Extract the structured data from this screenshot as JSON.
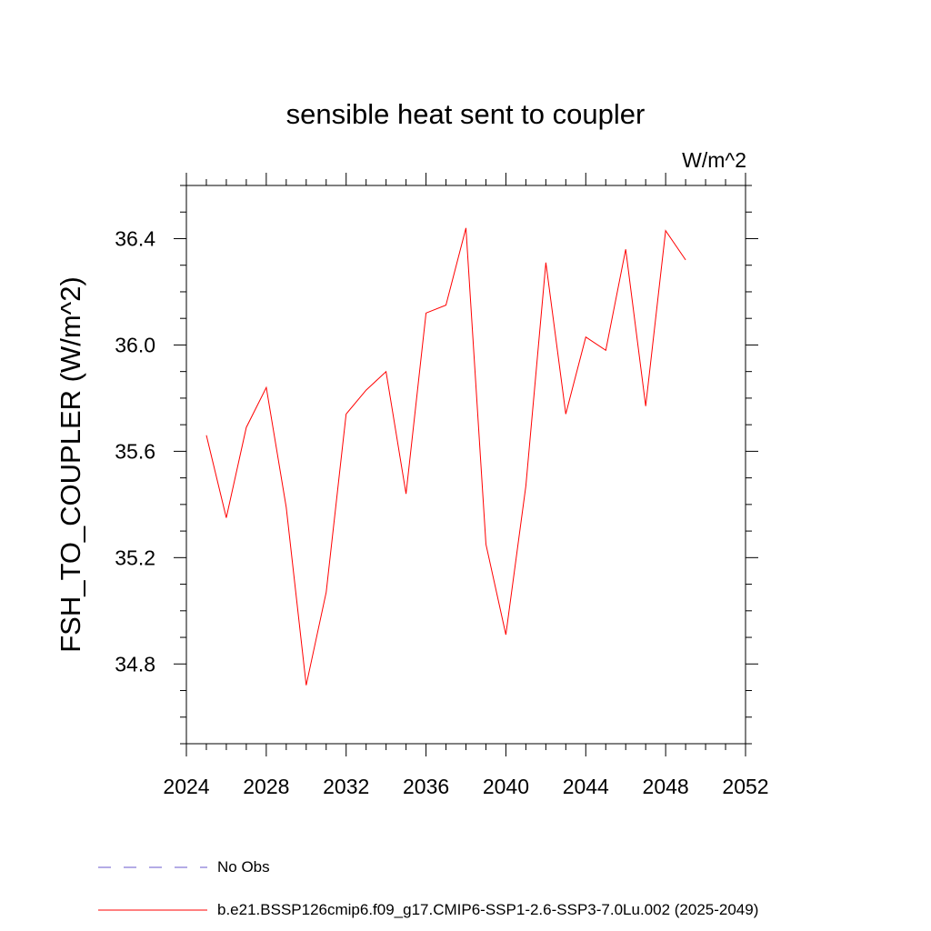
{
  "chart_data": {
    "type": "line",
    "title": "sensible heat sent to coupler",
    "units": "W/m^2",
    "xlabel": "",
    "ylabel": "FSH_TO_COUPLER  (W/m^2)",
    "xlim": [
      2024,
      2052
    ],
    "ylim": [
      34.5,
      36.6
    ],
    "x_ticks": [
      "2024",
      "2028",
      "2032",
      "2036",
      "2040",
      "2044",
      "2048",
      "2052"
    ],
    "y_ticks": [
      "34.8",
      "35.2",
      "35.6",
      "36.0",
      "36.4"
    ],
    "grid": false,
    "legend_placement": "bottom",
    "x": [
      2025,
      2026,
      2027,
      2028,
      2029,
      2030,
      2031,
      2032,
      2033,
      2034,
      2035,
      2036,
      2037,
      2038,
      2039,
      2040,
      2041,
      2042,
      2043,
      2044,
      2045,
      2046,
      2047,
      2048,
      2049
    ],
    "series": [
      {
        "name": "b.e21.BSSP126cmip6.f09_g17.CMIP6-SSP1-2.6-SSP3-7.0Lu.002 (2025-2049)",
        "color": "#ff0000",
        "values": [
          35.66,
          35.35,
          35.69,
          35.84,
          35.39,
          34.72,
          35.07,
          35.74,
          35.83,
          35.9,
          35.44,
          36.12,
          36.15,
          36.44,
          35.25,
          34.91,
          35.47,
          36.31,
          35.74,
          36.03,
          35.98,
          36.36,
          35.77,
          36.43,
          36.32
        ]
      }
    ],
    "legend": [
      {
        "label": "No Obs",
        "color": "#6a5acd",
        "style": "dashed"
      },
      {
        "label": "b.e21.BSSP126cmip6.f09_g17.CMIP6-SSP1-2.6-SSP3-7.0Lu.002 (2025-2049)",
        "color": "#ff0000",
        "style": "solid"
      }
    ]
  }
}
